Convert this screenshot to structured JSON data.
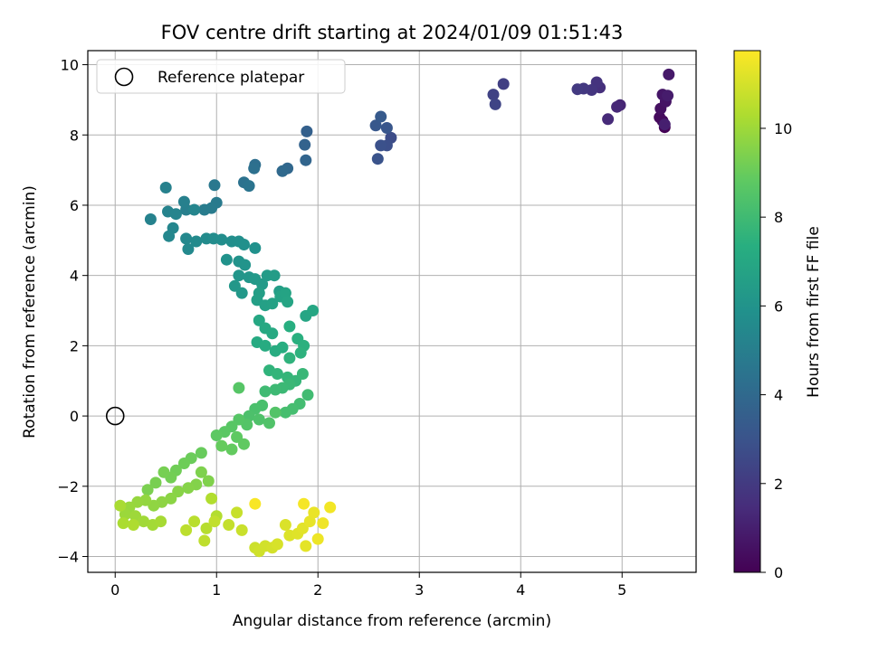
{
  "chart_data": {
    "type": "scatter",
    "title": "FOV centre drift starting at 2024/01/09 01:51:43",
    "xlabel": "Angular distance from reference (arcmin)",
    "ylabel": "Rotation from reference (arcmin)",
    "xlim": [
      -0.27,
      5.73
    ],
    "ylim": [
      -4.45,
      10.4
    ],
    "xticks": [
      0,
      1,
      2,
      3,
      4,
      5
    ],
    "yticks": [
      -4,
      -2,
      0,
      2,
      4,
      6,
      8,
      10
    ],
    "ytick_labels": [
      "−4",
      "−2",
      "0",
      "2",
      "4",
      "6",
      "8",
      "10"
    ],
    "grid": true,
    "legend": {
      "label": "Reference platepar",
      "placement": "top-left"
    },
    "reference_point": {
      "x": 0,
      "y": 0,
      "marker": "hollow-circle"
    },
    "colorbar": {
      "label": "Hours from first FF file",
      "colormap": "viridis",
      "range": [
        0,
        11.75
      ],
      "ticks": [
        0,
        2,
        4,
        6,
        8,
        10
      ]
    },
    "series": [
      {
        "color_by": "hours",
        "points": [
          [
            5.42,
            8.22,
            0.05
          ],
          [
            5.4,
            8.4,
            0.2
          ],
          [
            5.37,
            8.5,
            0.35
          ],
          [
            5.38,
            8.75,
            0.5
          ],
          [
            5.43,
            8.95,
            0.6
          ],
          [
            5.4,
            9.15,
            0.7
          ],
          [
            5.46,
            9.72,
            0.8
          ],
          [
            5.45,
            9.12,
            0.9
          ],
          [
            5.42,
            8.3,
            1.0
          ],
          [
            4.98,
            8.85,
            1.2
          ],
          [
            4.95,
            8.8,
            1.3
          ],
          [
            4.86,
            8.45,
            1.4
          ],
          [
            4.78,
            9.35,
            1.6
          ],
          [
            4.75,
            9.5,
            1.7
          ],
          [
            4.7,
            9.28,
            1.8
          ],
          [
            4.62,
            9.32,
            1.9
          ],
          [
            4.56,
            9.3,
            2.0
          ],
          [
            3.83,
            9.45,
            2.2
          ],
          [
            3.73,
            9.15,
            2.3
          ],
          [
            3.75,
            8.87,
            2.4
          ],
          [
            2.72,
            7.92,
            2.7
          ],
          [
            2.68,
            7.7,
            2.8
          ],
          [
            2.62,
            7.7,
            2.9
          ],
          [
            2.59,
            7.32,
            3.0
          ],
          [
            2.68,
            8.2,
            3.1
          ],
          [
            2.57,
            8.27,
            3.2
          ],
          [
            2.62,
            8.52,
            3.3
          ],
          [
            1.89,
            8.1,
            3.6
          ],
          [
            1.87,
            7.72,
            3.7
          ],
          [
            1.88,
            7.28,
            3.8
          ],
          [
            1.7,
            7.05,
            3.9
          ],
          [
            1.65,
            6.97,
            4.0
          ],
          [
            1.38,
            7.15,
            4.2
          ],
          [
            1.37,
            7.05,
            4.3
          ],
          [
            1.27,
            6.65,
            4.4
          ],
          [
            1.32,
            6.55,
            4.5
          ],
          [
            0.98,
            6.57,
            4.7
          ],
          [
            1.0,
            6.07,
            4.8
          ],
          [
            0.95,
            5.92,
            4.85
          ],
          [
            0.88,
            5.87,
            4.9
          ],
          [
            0.7,
            5.87,
            5.0
          ],
          [
            0.68,
            6.1,
            5.05
          ],
          [
            0.5,
            6.5,
            5.1
          ],
          [
            0.35,
            5.6,
            5.15
          ],
          [
            0.52,
            5.82,
            5.2
          ],
          [
            0.6,
            5.75,
            5.25
          ],
          [
            0.78,
            5.87,
            5.3
          ],
          [
            0.57,
            5.35,
            5.35
          ],
          [
            0.53,
            5.12,
            5.4
          ],
          [
            0.7,
            5.05,
            5.45
          ],
          [
            0.72,
            4.75,
            5.5
          ],
          [
            0.8,
            4.97,
            5.55
          ],
          [
            0.9,
            5.05,
            5.6
          ],
          [
            0.97,
            5.05,
            5.65
          ],
          [
            1.05,
            5.02,
            5.7
          ],
          [
            1.15,
            4.97,
            5.75
          ],
          [
            1.22,
            4.97,
            5.8
          ],
          [
            1.27,
            4.88,
            5.85
          ],
          [
            1.38,
            4.78,
            5.9
          ],
          [
            1.1,
            4.45,
            5.95
          ],
          [
            1.22,
            4.4,
            6.0
          ],
          [
            1.28,
            4.3,
            6.05
          ],
          [
            1.22,
            4.0,
            6.1
          ],
          [
            1.32,
            3.95,
            6.15
          ],
          [
            1.18,
            3.7,
            6.2
          ],
          [
            1.25,
            3.5,
            6.25
          ],
          [
            1.38,
            3.9,
            6.3
          ],
          [
            1.45,
            3.75,
            6.35
          ],
          [
            1.5,
            4.0,
            6.4
          ],
          [
            1.57,
            4.0,
            6.45
          ],
          [
            1.62,
            3.55,
            6.5
          ],
          [
            1.42,
            3.5,
            6.55
          ],
          [
            1.4,
            3.3,
            6.6
          ],
          [
            1.48,
            3.15,
            6.65
          ],
          [
            1.55,
            3.2,
            6.7
          ],
          [
            1.63,
            3.4,
            6.75
          ],
          [
            1.68,
            3.5,
            6.8
          ],
          [
            1.7,
            3.25,
            6.85
          ],
          [
            1.88,
            2.85,
            6.9
          ],
          [
            1.95,
            3.0,
            6.95
          ],
          [
            1.42,
            2.72,
            7.0
          ],
          [
            1.48,
            2.5,
            7.05
          ],
          [
            1.55,
            2.35,
            7.1
          ],
          [
            1.4,
            2.1,
            7.15
          ],
          [
            1.48,
            2.0,
            7.2
          ],
          [
            1.58,
            1.85,
            7.25
          ],
          [
            1.65,
            1.95,
            7.3
          ],
          [
            1.72,
            2.55,
            7.35
          ],
          [
            1.8,
            2.2,
            7.4
          ],
          [
            1.86,
            2.0,
            7.45
          ],
          [
            1.83,
            1.8,
            7.5
          ],
          [
            1.72,
            1.65,
            7.55
          ],
          [
            1.52,
            1.3,
            7.6
          ],
          [
            1.6,
            1.2,
            7.65
          ],
          [
            1.7,
            1.1,
            7.7
          ],
          [
            1.78,
            1.0,
            7.75
          ],
          [
            1.85,
            1.2,
            7.8
          ],
          [
            1.72,
            0.9,
            7.85
          ],
          [
            1.65,
            0.8,
            7.9
          ],
          [
            1.58,
            0.75,
            7.95
          ],
          [
            1.48,
            0.7,
            8.0
          ],
          [
            1.9,
            0.6,
            8.05
          ],
          [
            1.82,
            0.35,
            8.1
          ],
          [
            1.75,
            0.2,
            8.15
          ],
          [
            1.68,
            0.1,
            8.2
          ],
          [
            1.45,
            0.3,
            8.25
          ],
          [
            1.38,
            0.2,
            8.3
          ],
          [
            1.32,
            0.0,
            8.35
          ],
          [
            1.42,
            -0.1,
            8.4
          ],
          [
            1.52,
            -0.2,
            8.45
          ],
          [
            1.58,
            0.1,
            8.5
          ],
          [
            1.3,
            -0.25,
            8.55
          ],
          [
            1.22,
            -0.1,
            8.6
          ],
          [
            1.15,
            -0.3,
            8.65
          ],
          [
            1.08,
            -0.45,
            8.7
          ],
          [
            1.0,
            -0.55,
            8.75
          ],
          [
            1.2,
            -0.6,
            8.8
          ],
          [
            1.27,
            -0.8,
            8.85
          ],
          [
            1.15,
            -0.95,
            8.9
          ],
          [
            1.05,
            -0.85,
            8.95
          ],
          [
            1.22,
            0.8,
            8.6
          ],
          [
            0.85,
            -1.05,
            9.0
          ],
          [
            0.75,
            -1.2,
            9.05
          ],
          [
            0.68,
            -1.35,
            9.1
          ],
          [
            0.6,
            -1.55,
            9.15
          ],
          [
            0.55,
            -1.75,
            9.2
          ],
          [
            0.48,
            -1.6,
            9.25
          ],
          [
            0.4,
            -1.9,
            9.3
          ],
          [
            0.32,
            -2.1,
            9.35
          ],
          [
            0.85,
            -1.6,
            9.4
          ],
          [
            0.92,
            -1.85,
            9.45
          ],
          [
            0.8,
            -1.95,
            9.5
          ],
          [
            0.72,
            -2.05,
            9.55
          ],
          [
            0.62,
            -2.15,
            9.6
          ],
          [
            0.55,
            -2.35,
            9.65
          ],
          [
            0.46,
            -2.45,
            9.7
          ],
          [
            0.38,
            -2.55,
            9.75
          ],
          [
            0.3,
            -2.4,
            9.8
          ],
          [
            0.22,
            -2.45,
            9.85
          ],
          [
            0.14,
            -2.6,
            9.9
          ],
          [
            0.1,
            -2.8,
            9.95
          ],
          [
            0.2,
            -2.85,
            10.0
          ],
          [
            0.28,
            -3.0,
            10.05
          ],
          [
            0.37,
            -3.1,
            10.1
          ],
          [
            0.45,
            -3.0,
            10.15
          ],
          [
            0.05,
            -2.55,
            10.2
          ],
          [
            0.08,
            -3.05,
            10.25
          ],
          [
            0.18,
            -3.1,
            10.3
          ],
          [
            0.95,
            -2.35,
            10.35
          ],
          [
            1.0,
            -2.85,
            10.4
          ],
          [
            0.9,
            -3.2,
            10.45
          ],
          [
            0.78,
            -3.0,
            10.5
          ],
          [
            0.7,
            -3.25,
            10.55
          ],
          [
            0.88,
            -3.55,
            10.6
          ],
          [
            0.98,
            -3.0,
            10.65
          ],
          [
            1.12,
            -3.1,
            10.7
          ],
          [
            1.2,
            -2.75,
            10.75
          ],
          [
            1.25,
            -3.25,
            10.8
          ],
          [
            1.38,
            -3.75,
            10.85
          ],
          [
            1.42,
            -3.85,
            10.9
          ],
          [
            1.48,
            -3.7,
            10.95
          ],
          [
            1.55,
            -3.75,
            11.0
          ],
          [
            1.6,
            -3.65,
            11.05
          ],
          [
            1.68,
            -3.1,
            11.1
          ],
          [
            1.72,
            -3.4,
            11.15
          ],
          [
            1.8,
            -3.35,
            11.2
          ],
          [
            1.85,
            -3.2,
            11.25
          ],
          [
            1.88,
            -3.7,
            11.3
          ],
          [
            1.92,
            -3.0,
            11.35
          ],
          [
            1.96,
            -2.75,
            11.4
          ],
          [
            2.0,
            -3.5,
            11.45
          ],
          [
            2.05,
            -3.05,
            11.5
          ],
          [
            2.12,
            -2.6,
            11.55
          ],
          [
            1.86,
            -2.5,
            11.6
          ],
          [
            1.38,
            -2.5,
            11.65
          ]
        ]
      }
    ]
  }
}
